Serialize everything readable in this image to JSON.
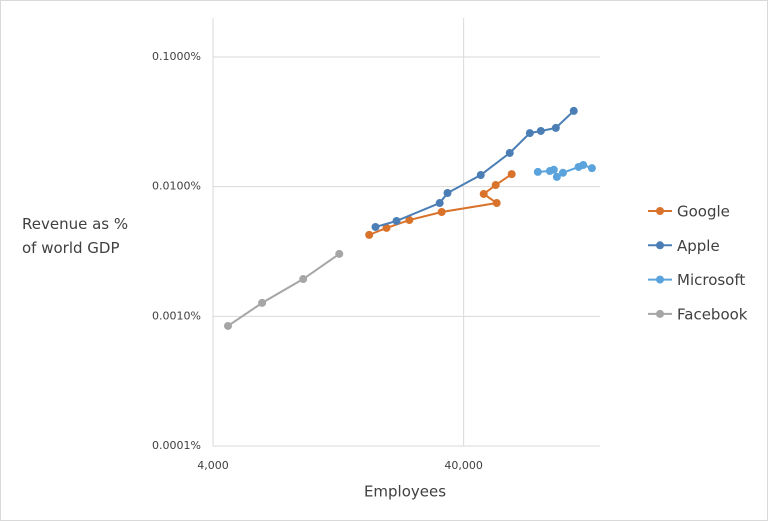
{
  "chart_data": {
    "type": "line",
    "x_label": "Employees",
    "y_label": "Revenue as % of world GDP",
    "xscale": "log",
    "yscale": "log",
    "xlim": [
      4000,
      140000
    ],
    "ylim": [
      0.0001,
      0.2
    ],
    "xticks": [
      {
        "value": 4000,
        "label": "4,000"
      },
      {
        "value": 40000,
        "label": "40,000"
      }
    ],
    "yticks": [
      {
        "value": 0.0001,
        "label": "0.0001%"
      },
      {
        "value": 0.001,
        "label": "0.0010%"
      },
      {
        "value": 0.01,
        "label": "0.0100%"
      },
      {
        "value": 0.1,
        "label": "0.1000%"
      }
    ],
    "grid": true,
    "legend": "right",
    "series": [
      {
        "name": "Google",
        "color": "#d9732b",
        "x": [
          16800,
          19700,
          24300,
          32700,
          54200,
          48100,
          53700,
          62200
        ],
        "values": [
          0.00425,
          0.00481,
          0.00553,
          0.00638,
          0.00748,
          0.00879,
          0.0103,
          0.0125
        ]
      },
      {
        "name": "Apple",
        "color": "#4a7eb5",
        "x": [
          17800,
          21600,
          32100,
          34500,
          46800,
          61100,
          73500,
          81300,
          93300,
          110000
        ],
        "values": [
          0.00489,
          0.00544,
          0.00748,
          0.00894,
          0.0123,
          0.0182,
          0.0259,
          0.0269,
          0.0284,
          0.0384
        ]
      },
      {
        "name": "Microsoft",
        "color": "#5ba3dc",
        "x": [
          79100,
          88300,
          91600,
          94200,
          99600,
          115000,
          120000,
          130000
        ],
        "values": [
          0.013,
          0.0132,
          0.0135,
          0.0119,
          0.0128,
          0.0142,
          0.0147,
          0.0139
        ]
      },
      {
        "name": "Facebook",
        "color": "#a6a6a6",
        "x": [
          4590,
          6280,
          9160,
          12760
        ],
        "values": [
          0.000843,
          0.00127,
          0.00194,
          0.00303
        ]
      }
    ]
  }
}
